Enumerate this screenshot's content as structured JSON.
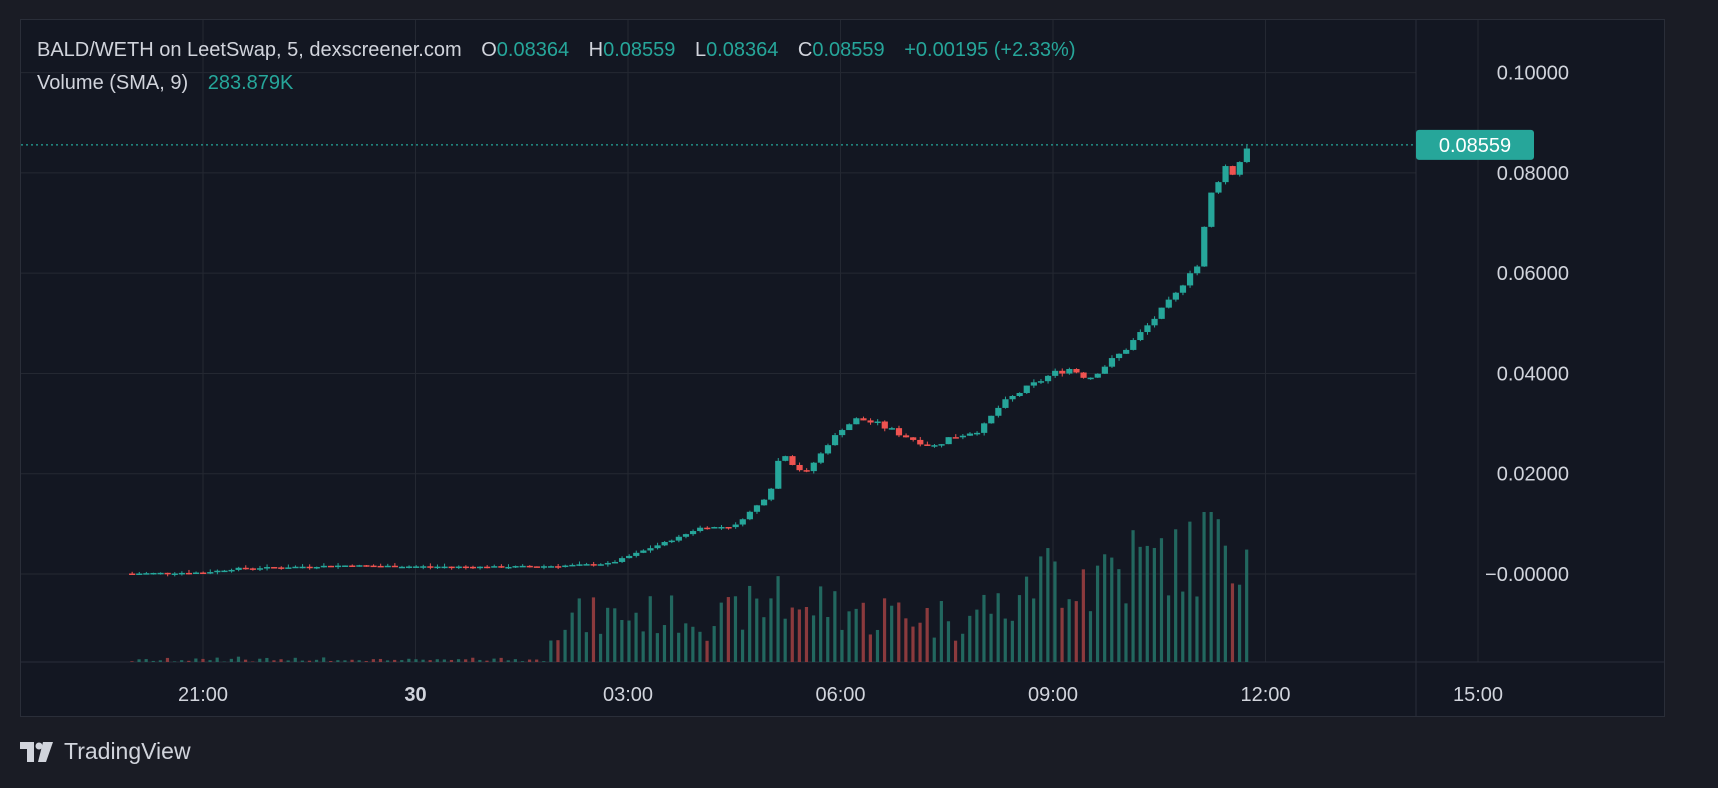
{
  "legend": {
    "symbol": "BALD/WETH on LeetSwap, 5, dexscreener.com",
    "open_label": "O",
    "open": "0.08364",
    "high_label": "H",
    "high": "0.08559",
    "low_label": "L",
    "low": "0.08364",
    "close_label": "C",
    "close": "0.08559",
    "change": "+0.00195 (+2.33%)",
    "volume_label": "Volume (SMA, 9)",
    "volume_value": "283.879K"
  },
  "price_axis_ticks": [
    "0.10000",
    "0.08000",
    "0.06000",
    "0.04000",
    "0.02000",
    "−0.00000"
  ],
  "last_price_label": "0.08559",
  "time_axis_ticks": [
    "21:00",
    "30",
    "03:00",
    "06:00",
    "09:00",
    "12:00",
    "15:00"
  ],
  "brand": {
    "name": "TradingView",
    "icon": "tradingview-logo-icon"
  },
  "colors": {
    "up": "#26a69a",
    "down": "#ef5350",
    "up_vol": "#22675f",
    "down_vol": "#8b3a3d",
    "background": "#131722",
    "grid": "#242832",
    "text": "#d1d4dc"
  },
  "chart_data": {
    "type": "candlestick",
    "interval": "5m",
    "time_range": [
      "19:30",
      "12:00"
    ],
    "ylim": [
      -0.017,
      0.112
    ],
    "last_price": 0.08559,
    "price_series": [
      {
        "time": "20:00",
        "close": 0.0001
      },
      {
        "time": "20:30",
        "close": 0.0002
      },
      {
        "time": "21:00",
        "close": 0.0003
      },
      {
        "time": "21:30",
        "close": 0.0011
      },
      {
        "time": "22:00",
        "close": 0.0013
      },
      {
        "time": "23:00",
        "close": 0.0017
      },
      {
        "time": "00:00",
        "close": 0.0015
      },
      {
        "time": "01:00",
        "close": 0.0014
      },
      {
        "time": "02:00",
        "close": 0.0016
      },
      {
        "time": "02:45",
        "close": 0.0021
      },
      {
        "time": "03:00",
        "close": 0.0035
      },
      {
        "time": "03:45",
        "close": 0.0075
      },
      {
        "time": "04:00",
        "close": 0.0092
      },
      {
        "time": "04:30",
        "close": 0.0095
      },
      {
        "time": "05:00",
        "close": 0.016
      },
      {
        "time": "05:10",
        "close": 0.025
      },
      {
        "time": "05:20",
        "close": 0.022
      },
      {
        "time": "05:30",
        "close": 0.02
      },
      {
        "time": "06:00",
        "close": 0.029
      },
      {
        "time": "06:15",
        "close": 0.031
      },
      {
        "time": "06:30",
        "close": 0.03
      },
      {
        "time": "07:00",
        "close": 0.027
      },
      {
        "time": "07:20",
        "close": 0.0255
      },
      {
        "time": "07:30",
        "close": 0.027
      },
      {
        "time": "08:00",
        "close": 0.029
      },
      {
        "time": "08:15",
        "close": 0.0335
      },
      {
        "time": "08:30",
        "close": 0.036
      },
      {
        "time": "09:00",
        "close": 0.04
      },
      {
        "time": "09:15",
        "close": 0.041
      },
      {
        "time": "09:30",
        "close": 0.039
      },
      {
        "time": "10:00",
        "close": 0.0445
      },
      {
        "time": "10:30",
        "close": 0.052
      },
      {
        "time": "10:45",
        "close": 0.056
      },
      {
        "time": "11:00",
        "close": 0.062
      },
      {
        "time": "11:05",
        "close": 0.0605
      },
      {
        "time": "11:10",
        "close": 0.074
      },
      {
        "time": "11:20",
        "close": 0.0785
      },
      {
        "time": "11:25",
        "close": 0.082
      },
      {
        "time": "11:30",
        "close": 0.079
      },
      {
        "time": "11:40",
        "close": 0.083
      },
      {
        "time": "11:45",
        "close": 0.08559
      }
    ]
  }
}
